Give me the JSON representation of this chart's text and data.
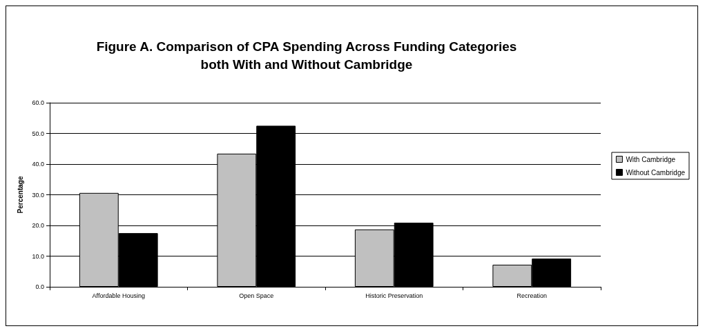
{
  "chart_data": {
    "type": "bar",
    "title": "Figure A. Comparison of CPA Spending Across Funding Categories\nboth With and Without Cambridge",
    "ylabel": "Percentage",
    "categories": [
      "Affordable Housing",
      "Open Space",
      "Historic Preservation",
      "Recreation"
    ],
    "series": [
      {
        "name": "With Cambridge",
        "color": "#c0c0c0",
        "values": [
          30.6,
          43.4,
          18.7,
          7.2
        ]
      },
      {
        "name": "Without Cambridge",
        "color": "#000000",
        "values": [
          17.5,
          52.5,
          20.9,
          9.2
        ]
      }
    ],
    "ylim": [
      0,
      60
    ],
    "yticks": [
      {
        "value": 0,
        "label": "0.0"
      },
      {
        "value": 10,
        "label": "10.0"
      },
      {
        "value": 20,
        "label": "20.0"
      },
      {
        "value": 30,
        "label": "30.0"
      },
      {
        "value": 40,
        "label": "40.0"
      },
      {
        "value": 50,
        "label": "50.0"
      },
      {
        "value": 60,
        "label": "60.0"
      }
    ],
    "grid": "y",
    "legend": "right"
  }
}
